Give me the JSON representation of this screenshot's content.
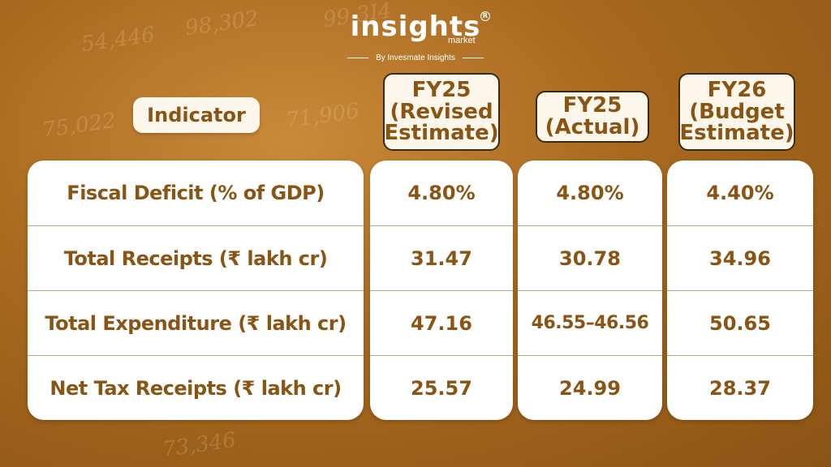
{
  "brand": {
    "name": "insights",
    "sub": "market",
    "by": "By Invesmate Insights"
  },
  "background_numbers": [
    "54,446",
    "98,302",
    "99,3I4",
    "75,022",
    "71,906",
    "73,346"
  ],
  "header": {
    "indicator": "Indicator",
    "columns": [
      [
        "FY25",
        "(Revised",
        "Estimate)"
      ],
      [
        "FY25",
        "(Actual)"
      ],
      [
        "FY26",
        "(Budget",
        "Estimate)"
      ]
    ]
  },
  "rows": [
    {
      "indicator": "Fiscal Deficit (% of GDP)",
      "values": [
        "4.80%",
        "4.80%",
        "4.40%"
      ]
    },
    {
      "indicator": "Total Receipts (₹ lakh cr)",
      "values": [
        "31.47",
        "30.78",
        "34.96"
      ]
    },
    {
      "indicator": "Total Expenditure (₹ lakh cr)",
      "values": [
        "47.16",
        "46.55–46.56",
        "50.65"
      ]
    },
    {
      "indicator": "Net Tax Receipts (₹ lakh cr)",
      "values": [
        "25.57",
        "24.99",
        "28.37"
      ]
    }
  ],
  "colors": {
    "text": "#8a5414",
    "background": "#a8691f",
    "card": "#ffffff"
  }
}
